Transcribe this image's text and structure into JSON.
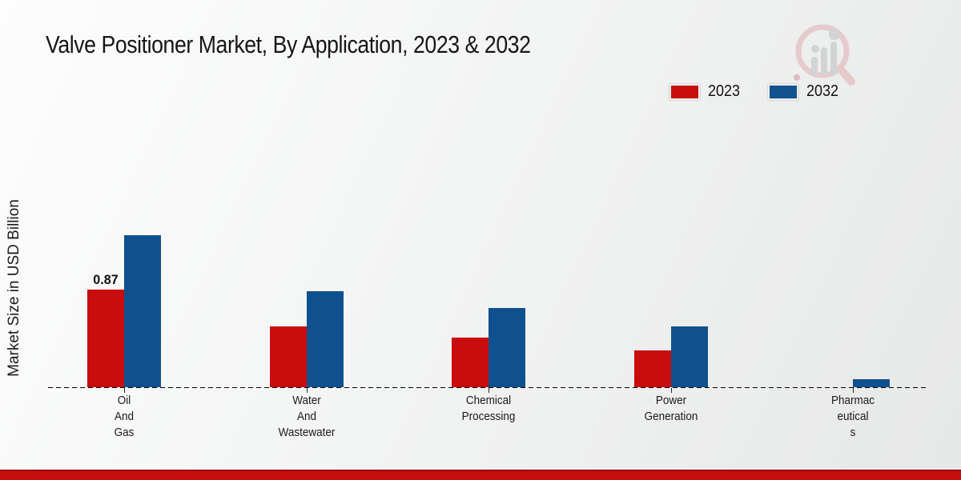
{
  "header": {
    "title": "Valve Positioner Market, By Application, 2023 & 2032"
  },
  "legend": {
    "items": [
      {
        "label": "2023",
        "color": "#c90c0e"
      },
      {
        "label": "2032",
        "color": "#11528f"
      }
    ]
  },
  "watermark_icon": "magnifier-bar-chart-logo",
  "footer_banner_color": "#c40d0d",
  "chart_data": {
    "type": "bar",
    "title": "Valve Positioner Market, By Application, 2023 & 2032",
    "xlabel": "",
    "ylabel": "Market Size in USD Billion",
    "categories": [
      "Oil And Gas",
      "Water And Wastewater",
      "Chemical Processing",
      "Power Generation",
      "Pharmaceuticals"
    ],
    "category_label_lines": [
      [
        "Oil",
        "And",
        "Gas"
      ],
      [
        "Water",
        "And",
        "Wastewater"
      ],
      [
        "Chemical",
        "Processing"
      ],
      [
        "Power",
        "Generation"
      ],
      [
        "Pharmac",
        "eutical",
        "s"
      ]
    ],
    "series": [
      {
        "name": "2023",
        "color": "#c90c0e",
        "values": [
          0.87,
          0.54,
          0.44,
          0.33,
          0
        ]
      },
      {
        "name": "2032",
        "color": "#0f518e",
        "values": [
          1.36,
          0.86,
          0.71,
          0.54,
          0.07
        ]
      }
    ],
    "value_labels": [
      {
        "series_index": 0,
        "category_index": 0,
        "text": "0.87"
      }
    ],
    "ylim": [
      0,
      1.55
    ],
    "grid": false,
    "axis_style": "dashed-baseline-only",
    "legend_position": "top-right"
  }
}
